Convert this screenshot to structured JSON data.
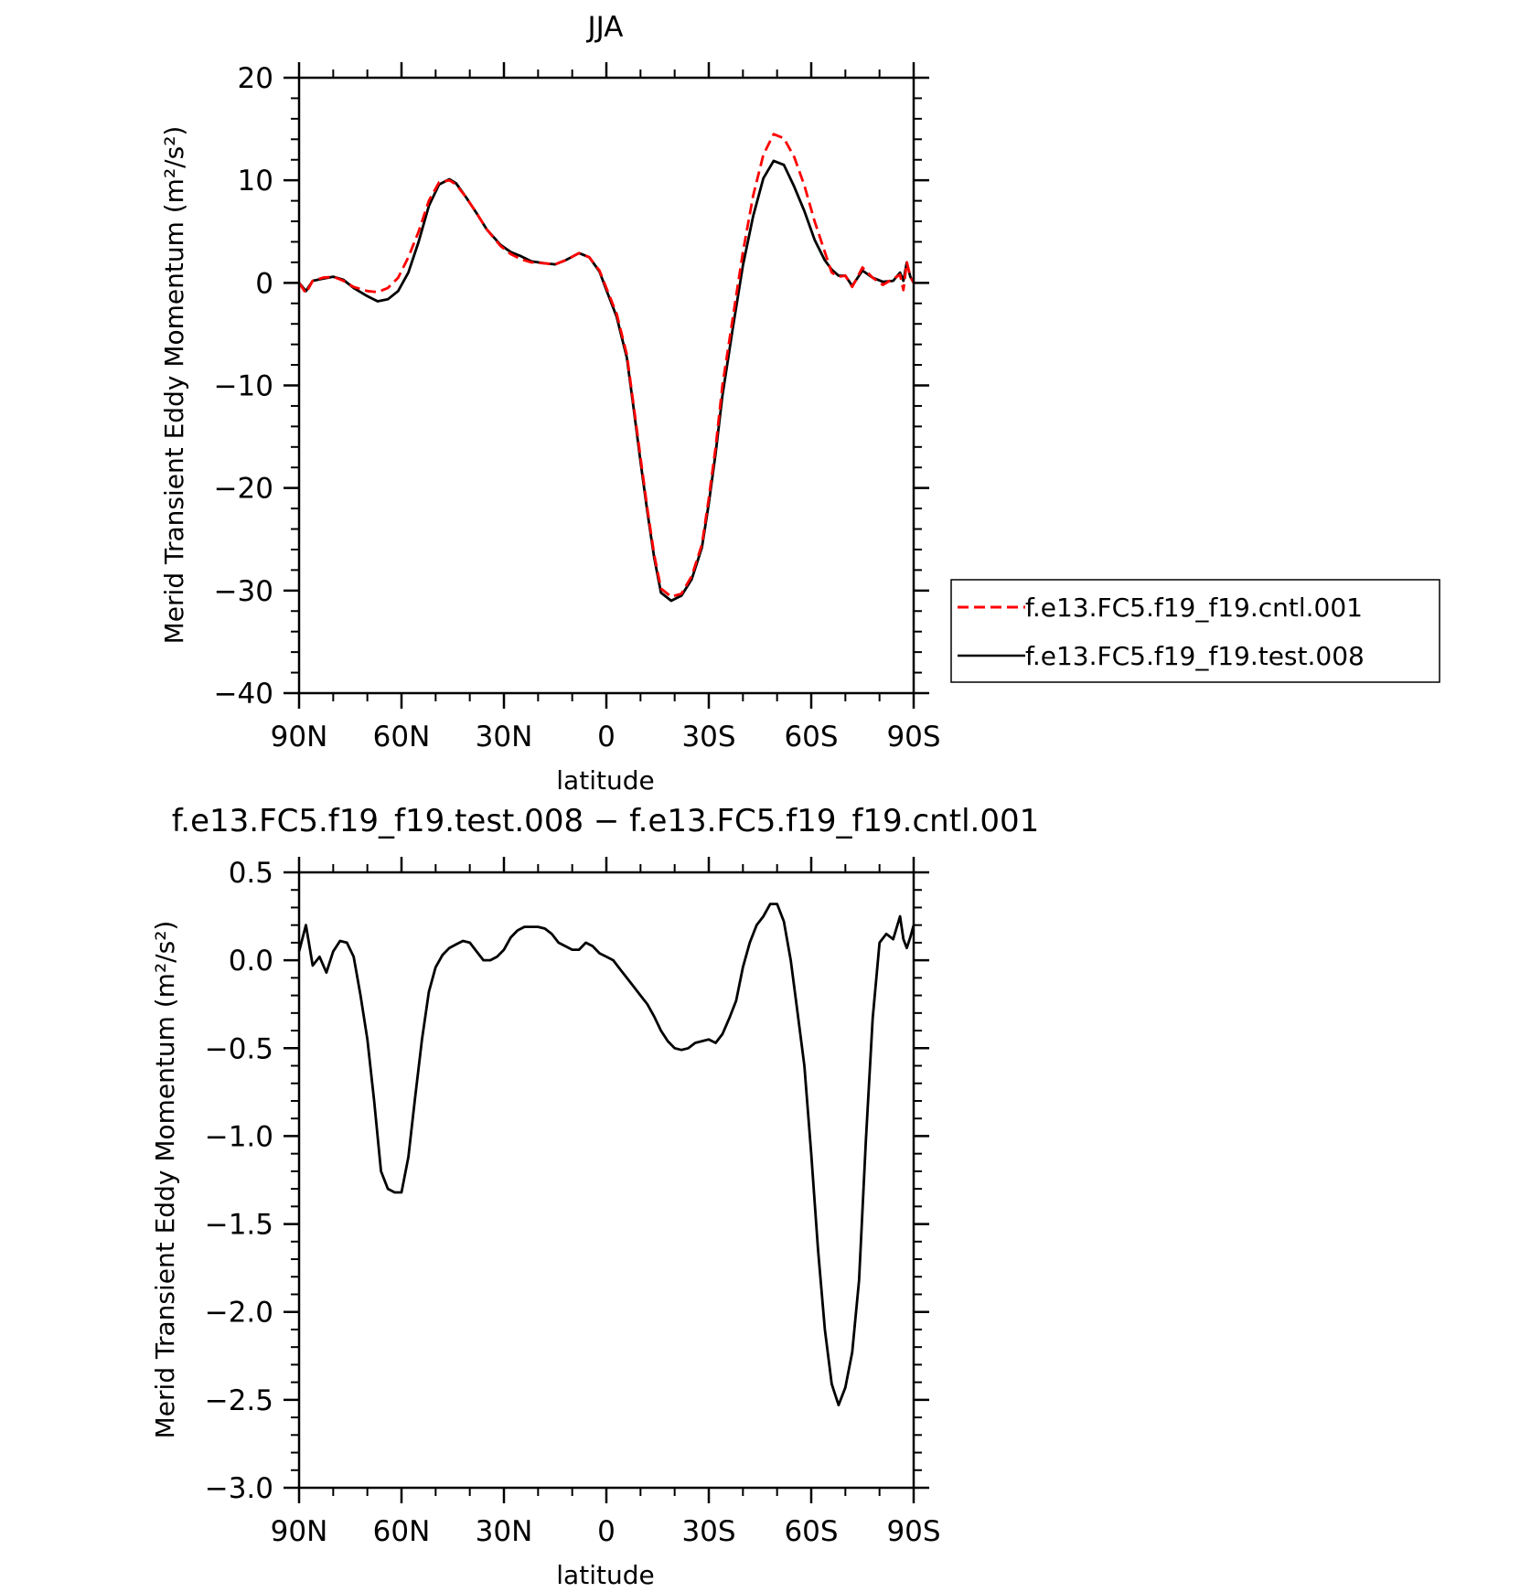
{
  "chart_data": [
    {
      "type": "line",
      "title": "JJA",
      "xlabel": "latitude",
      "ylabel": "Merid Transient Eddy Momentum (m²/s²)",
      "xlim": [
        90,
        -90
      ],
      "ylim": [
        -40,
        20
      ],
      "xticks": [
        90,
        60,
        30,
        0,
        -30,
        -60,
        -90
      ],
      "xtick_labels": [
        "90N",
        "60N",
        "30N",
        "0",
        "30S",
        "60S",
        "90S"
      ],
      "yticks": [
        20,
        10,
        0,
        -10,
        -20,
        -30,
        -40
      ],
      "ytick_labels": [
        "20",
        "10",
        "0",
        "−10",
        "−20",
        "−30",
        "−40"
      ],
      "legend_position": "right",
      "series": [
        {
          "name": "f.e13.FC5.f19_f19.cntl.001",
          "color": "#ff0000",
          "dash": "dashed",
          "x": [
            90,
            88,
            86,
            83,
            80,
            77,
            74,
            70,
            67,
            64,
            61,
            58,
            55,
            52,
            49,
            46,
            44,
            41,
            38,
            35,
            31,
            28,
            25,
            22,
            18,
            15,
            12,
            8,
            5,
            2,
            0,
            -3,
            -6,
            -8,
            -10,
            -12,
            -14,
            -16,
            -19,
            -22,
            -25,
            -28,
            -30,
            -32,
            -34,
            -37,
            -40,
            -43,
            -46,
            -49,
            -52,
            -55,
            -58,
            -61,
            -64,
            -66,
            -68,
            -70,
            -72,
            -75,
            -78,
            -81,
            -84,
            -86,
            -87,
            -88,
            -89,
            -90
          ],
          "y": [
            0,
            -1,
            0.2,
            0.5,
            0.6,
            0.2,
            -0.4,
            -0.8,
            -0.9,
            -0.5,
            0.5,
            2.5,
            5,
            8,
            9.8,
            10,
            9.6,
            8.3,
            6.8,
            5.2,
            3.6,
            2.8,
            2.3,
            2.0,
            1.9,
            1.8,
            2.2,
            2.9,
            2.5,
            1.2,
            -0.5,
            -3,
            -7,
            -12,
            -17,
            -22,
            -26.5,
            -29.8,
            -30.6,
            -30.3,
            -28.6,
            -25.5,
            -21,
            -16,
            -10,
            -3.5,
            3,
            8.5,
            12.5,
            14.5,
            14.1,
            12.3,
            9.5,
            6,
            3,
            1,
            0.6,
            0.7,
            -0.4,
            1.5,
            0.5,
            -0.2,
            0.4,
            0.8,
            -0.7,
            2.0,
            0.6,
            0
          ]
        },
        {
          "name": "f.e13.FC5.f19_f19.test.008",
          "color": "#000000",
          "dash": "solid",
          "x": [
            90,
            88,
            86,
            83,
            80,
            77,
            74,
            70,
            67,
            64,
            61,
            58,
            55,
            52,
            49,
            46,
            44,
            41,
            38,
            35,
            31,
            28,
            25,
            22,
            18,
            15,
            12,
            8,
            5,
            2,
            0,
            -3,
            -6,
            -8,
            -10,
            -12,
            -14,
            -16,
            -19,
            -22,
            -25,
            -28,
            -30,
            -32,
            -34,
            -37,
            -40,
            -43,
            -46,
            -49,
            -52,
            -55,
            -58,
            -61,
            -64,
            -66,
            -68,
            -70,
            -72,
            -75,
            -78,
            -81,
            -84,
            -86,
            -87,
            -88,
            -89,
            -90
          ],
          "y": [
            0,
            -0.8,
            0.2,
            0.4,
            0.6,
            0.3,
            -0.5,
            -1.3,
            -1.8,
            -1.6,
            -0.8,
            1.0,
            4.0,
            7.5,
            9.6,
            10.1,
            9.7,
            8.3,
            6.8,
            5.2,
            3.7,
            3.0,
            2.6,
            2.1,
            1.9,
            1.8,
            2.2,
            2.9,
            2.5,
            1.1,
            -0.7,
            -3.3,
            -7.3,
            -12.3,
            -17.4,
            -22.3,
            -26.8,
            -30.2,
            -31,
            -30.5,
            -28.9,
            -25.8,
            -21.5,
            -16.6,
            -11,
            -4.5,
            1.7,
            6.5,
            10.2,
            11.9,
            11.5,
            9.4,
            7,
            4.2,
            2.2,
            1.3,
            0.7,
            0.7,
            -0.3,
            1.2,
            0.5,
            0.1,
            0.2,
            1.0,
            0.2,
            2.0,
            0.6,
            0
          ]
        }
      ]
    },
    {
      "type": "line",
      "title": "f.e13.FC5.f19_f19.test.008 − f.e13.FC5.f19_f19.cntl.001",
      "xlabel": "latitude",
      "ylabel": "Merid Transient Eddy Momentum (m²/s²)",
      "xlim": [
        90,
        -90
      ],
      "ylim": [
        -3.0,
        0.5
      ],
      "xticks": [
        90,
        60,
        30,
        0,
        -30,
        -60,
        -90
      ],
      "xtick_labels": [
        "90N",
        "60N",
        "30N",
        "0",
        "30S",
        "60S",
        "90S"
      ],
      "yticks": [
        0.5,
        0.0,
        -0.5,
        -1.0,
        -1.5,
        -2.0,
        -2.5,
        -3.0
      ],
      "ytick_labels": [
        "0.5",
        "0.0",
        "−0.5",
        "−1.0",
        "−1.5",
        "−2.0",
        "−2.5",
        "−3.0"
      ],
      "series": [
        {
          "color": "#000000",
          "dash": "solid",
          "x": [
            90,
            88,
            86,
            84,
            82,
            80,
            78,
            76,
            74,
            72,
            70,
            68,
            66,
            64,
            62,
            60,
            58,
            56,
            54,
            52,
            50,
            48,
            46,
            44,
            42,
            40,
            38,
            36,
            34,
            32,
            30,
            28,
            26,
            24,
            22,
            20,
            18,
            16,
            14,
            12,
            10,
            8,
            6,
            4,
            2,
            0,
            -2,
            -4,
            -6,
            -8,
            -10,
            -12,
            -14,
            -16,
            -18,
            -20,
            -22,
            -24,
            -26,
            -28,
            -30,
            -32,
            -34,
            -36,
            -38,
            -40,
            -42,
            -44,
            -46,
            -48,
            -50,
            -52,
            -54,
            -56,
            -58,
            -60,
            -62,
            -64,
            -66,
            -68,
            -70,
            -72,
            -74,
            -76,
            -78,
            -80,
            -82,
            -84,
            -86,
            -87,
            -88,
            -89,
            -90
          ],
          "y": [
            0.05,
            0.2,
            -0.03,
            0.02,
            -0.07,
            0.05,
            0.11,
            0.1,
            0.02,
            -0.2,
            -0.45,
            -0.8,
            -1.2,
            -1.3,
            -1.32,
            -1.32,
            -1.12,
            -0.78,
            -0.45,
            -0.18,
            -0.04,
            0.03,
            0.07,
            0.09,
            0.11,
            0.1,
            0.05,
            0.0,
            0.0,
            0.02,
            0.06,
            0.13,
            0.17,
            0.19,
            0.19,
            0.19,
            0.18,
            0.15,
            0.1,
            0.08,
            0.06,
            0.06,
            0.1,
            0.08,
            0.04,
            0.02,
            0.0,
            -0.05,
            -0.1,
            -0.15,
            -0.2,
            -0.25,
            -0.32,
            -0.4,
            -0.46,
            -0.5,
            -0.51,
            -0.5,
            -0.47,
            -0.46,
            -0.45,
            -0.47,
            -0.42,
            -0.33,
            -0.23,
            -0.04,
            0.1,
            0.2,
            0.25,
            0.32,
            0.32,
            0.22,
            0.0,
            -0.3,
            -0.6,
            -1.1,
            -1.65,
            -2.1,
            -2.41,
            -2.53,
            -2.43,
            -2.23,
            -1.82,
            -1.03,
            -0.33,
            0.1,
            0.15,
            0.12,
            0.25,
            0.12,
            0.07,
            0.13,
            0.2
          ]
        }
      ]
    }
  ]
}
